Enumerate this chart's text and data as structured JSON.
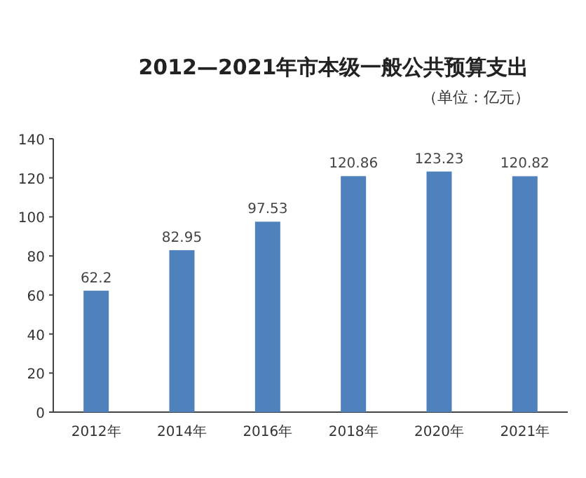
{
  "chart_data": {
    "type": "bar",
    "title": "2012—2021年市本级一般公共预算支出",
    "subtitle": "（单位：亿元）",
    "categories": [
      "2012年",
      "2014年",
      "2016年",
      "2018年",
      "2020年",
      "2021年"
    ],
    "values": [
      62.2,
      82.95,
      97.53,
      120.86,
      123.23,
      120.82
    ],
    "color": "#4f81bd",
    "ylim": [
      0,
      140
    ],
    "yticks": [
      0,
      20,
      40,
      60,
      80,
      100,
      120,
      140
    ],
    "data_labels": true
  }
}
